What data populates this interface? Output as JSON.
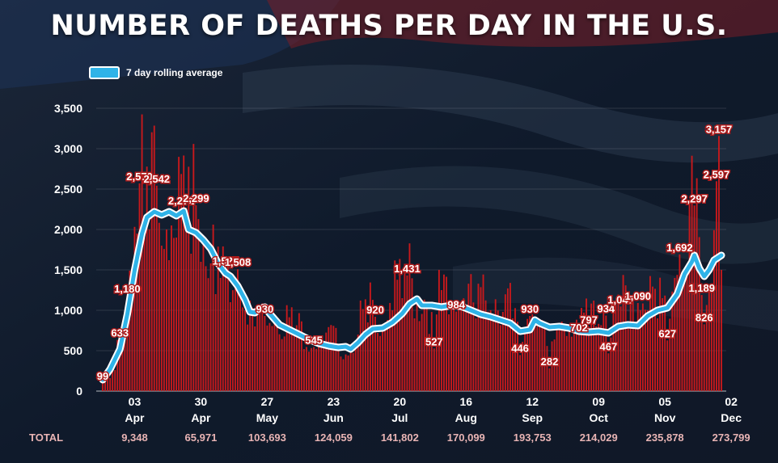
{
  "title": "NUMBER OF DEATHS PER DAY IN THE U.S.",
  "legend_label": "7 day rolling average",
  "colors": {
    "bars": "#c8191c",
    "line": "#2fb3e8",
    "line_border": "#ffffff",
    "label_outline": "#b01c1c",
    "background": "#121d2e"
  },
  "chart_data": {
    "type": "bar",
    "title": "NUMBER OF DEATHS PER DAY IN THE U.S.",
    "ylim": [
      0,
      3500
    ],
    "yticks": [
      0,
      500,
      1000,
      1500,
      2000,
      2500,
      3000,
      3500
    ],
    "ytick_labels": [
      "0",
      "500",
      "1,000",
      "1,500",
      "2,000",
      "2,500",
      "3,000",
      "3,500"
    ],
    "x_start": "Mar 21",
    "x_end": "Dec 2",
    "xticks": [
      {
        "day": "03",
        "month": "Apr",
        "index": 13
      },
      {
        "day": "30",
        "month": "Apr",
        "index": 40
      },
      {
        "day": "27",
        "month": "May",
        "index": 67
      },
      {
        "day": "23",
        "month": "Jun",
        "index": 94
      },
      {
        "day": "20",
        "month": "Jul",
        "index": 121
      },
      {
        "day": "16",
        "month": "Aug",
        "index": 148
      },
      {
        "day": "12",
        "month": "Sep",
        "index": 175
      },
      {
        "day": "09",
        "month": "Oct",
        "index": 202
      },
      {
        "day": "05",
        "month": "Nov",
        "index": 229
      },
      {
        "day": "02",
        "month": "Dec",
        "index": 256
      }
    ],
    "totals_label": "TOTAL",
    "totals": [
      "9,348",
      "65,971",
      "103,693",
      "124,059",
      "141,802",
      "170,099",
      "193,753",
      "214,029",
      "235,878",
      "273,799"
    ],
    "daily_anchors": [
      [
        0,
        99
      ],
      [
        3,
        160
      ],
      [
        5,
        260
      ],
      [
        7,
        633
      ],
      [
        9,
        900
      ],
      [
        10,
        1180
      ],
      [
        12,
        1500
      ],
      [
        14,
        1950
      ],
      [
        15,
        2570
      ],
      [
        17,
        1900
      ],
      [
        19,
        2000
      ],
      [
        22,
        2542
      ],
      [
        24,
        1800
      ],
      [
        26,
        2000
      ],
      [
        28,
        2050
      ],
      [
        30,
        1900
      ],
      [
        34,
        2270
      ],
      [
        36,
        1700
      ],
      [
        38,
        2299
      ],
      [
        40,
        1600
      ],
      [
        44,
        1580
      ],
      [
        46,
        1200
      ],
      [
        48,
        1400
      ],
      [
        50,
        1527
      ],
      [
        52,
        1100
      ],
      [
        55,
        1508
      ],
      [
        58,
        1000
      ],
      [
        62,
        800
      ],
      [
        66,
        930
      ],
      [
        70,
        850
      ],
      [
        78,
        700
      ],
      [
        86,
        545
      ],
      [
        90,
        600
      ],
      [
        96,
        520
      ],
      [
        100,
        440
      ],
      [
        104,
        700
      ],
      [
        108,
        850
      ],
      [
        111,
        920
      ],
      [
        114,
        800
      ],
      [
        118,
        1000
      ],
      [
        122,
        1150
      ],
      [
        124,
        1431
      ],
      [
        127,
        900
      ],
      [
        132,
        1050
      ],
      [
        135,
        527
      ],
      [
        138,
        1250
      ],
      [
        141,
        950
      ],
      [
        144,
        984
      ],
      [
        148,
        1000
      ],
      [
        152,
        900
      ],
      [
        158,
        1000
      ],
      [
        163,
        980
      ],
      [
        167,
        900
      ],
      [
        170,
        446
      ],
      [
        174,
        930
      ],
      [
        176,
        900
      ],
      [
        178,
        800
      ],
      [
        182,
        282
      ],
      [
        186,
        800
      ],
      [
        190,
        800
      ],
      [
        194,
        702
      ],
      [
        198,
        797
      ],
      [
        201,
        800
      ],
      [
        205,
        934
      ],
      [
        206,
        467
      ],
      [
        211,
        1047
      ],
      [
        214,
        800
      ],
      [
        218,
        1090
      ],
      [
        222,
        1000
      ],
      [
        226,
        900
      ],
      [
        228,
        1150
      ],
      [
        230,
        627
      ],
      [
        233,
        1400
      ],
      [
        235,
        1692
      ],
      [
        238,
        1500
      ],
      [
        241,
        2297
      ],
      [
        244,
        1189
      ],
      [
        245,
        826
      ],
      [
        248,
        1300
      ],
      [
        250,
        2597
      ],
      [
        251,
        3157
      ],
      [
        252,
        1500
      ]
    ],
    "series": [
      {
        "name": "7 day rolling average",
        "type": "line",
        "points": [
          [
            0,
            140
          ],
          [
            3,
            270
          ],
          [
            7,
            520
          ],
          [
            10,
            950
          ],
          [
            13,
            1500
          ],
          [
            16,
            1950
          ],
          [
            18,
            2150
          ],
          [
            21,
            2220
          ],
          [
            24,
            2180
          ],
          [
            27,
            2220
          ],
          [
            30,
            2170
          ],
          [
            33,
            2230
          ],
          [
            35,
            2000
          ],
          [
            38,
            1960
          ],
          [
            41,
            1870
          ],
          [
            44,
            1760
          ],
          [
            47,
            1580
          ],
          [
            50,
            1460
          ],
          [
            52,
            1420
          ],
          [
            55,
            1300
          ],
          [
            58,
            1130
          ],
          [
            60,
            980
          ],
          [
            62,
            970
          ],
          [
            64,
            1020
          ],
          [
            66,
            1040
          ],
          [
            68,
            960
          ],
          [
            72,
            820
          ],
          [
            76,
            760
          ],
          [
            80,
            700
          ],
          [
            84,
            640
          ],
          [
            88,
            590
          ],
          [
            92,
            560
          ],
          [
            96,
            540
          ],
          [
            99,
            550
          ],
          [
            101,
            520
          ],
          [
            104,
            600
          ],
          [
            107,
            700
          ],
          [
            110,
            770
          ],
          [
            114,
            780
          ],
          [
            118,
            850
          ],
          [
            122,
            960
          ],
          [
            125,
            1080
          ],
          [
            128,
            1140
          ],
          [
            130,
            1060
          ],
          [
            134,
            1060
          ],
          [
            138,
            1040
          ],
          [
            142,
            1060
          ],
          [
            146,
            1050
          ],
          [
            150,
            1000
          ],
          [
            154,
            950
          ],
          [
            158,
            920
          ],
          [
            162,
            880
          ],
          [
            166,
            840
          ],
          [
            170,
            740
          ],
          [
            174,
            760
          ],
          [
            176,
            880
          ],
          [
            178,
            840
          ],
          [
            182,
            790
          ],
          [
            186,
            800
          ],
          [
            190,
            780
          ],
          [
            194,
            740
          ],
          [
            198,
            730
          ],
          [
            202,
            740
          ],
          [
            206,
            720
          ],
          [
            210,
            800
          ],
          [
            214,
            820
          ],
          [
            218,
            810
          ],
          [
            222,
            930
          ],
          [
            226,
            1000
          ],
          [
            230,
            1030
          ],
          [
            234,
            1200
          ],
          [
            237,
            1450
          ],
          [
            240,
            1600
          ],
          [
            241,
            1680
          ],
          [
            243,
            1520
          ],
          [
            245,
            1420
          ],
          [
            247,
            1500
          ],
          [
            249,
            1620
          ],
          [
            252,
            1680
          ]
        ]
      }
    ],
    "data_labels": [
      {
        "text": "99",
        "x": 0,
        "y": 99
      },
      {
        "text": "633",
        "x": 7,
        "y": 633
      },
      {
        "text": "1,180",
        "x": 10,
        "y": 1180
      },
      {
        "text": "2,570",
        "x": 15,
        "y": 2570
      },
      {
        "text": "2,542",
        "x": 22,
        "y": 2542
      },
      {
        "text": "2,271",
        "x": 32,
        "y": 2271
      },
      {
        "text": "2,299",
        "x": 38,
        "y": 2299
      },
      {
        "text": "1,527",
        "x": 50,
        "y": 1527
      },
      {
        "text": "1,508",
        "x": 55,
        "y": 1508
      },
      {
        "text": "930",
        "x": 66,
        "y": 930
      },
      {
        "text": "545",
        "x": 86,
        "y": 545
      },
      {
        "text": "920",
        "x": 111,
        "y": 920
      },
      {
        "text": "1,431",
        "x": 124,
        "y": 1431
      },
      {
        "text": "527",
        "x": 135,
        "y": 527
      },
      {
        "text": "984",
        "x": 144,
        "y": 984
      },
      {
        "text": "446",
        "x": 170,
        "y": 446
      },
      {
        "text": "930",
        "x": 174,
        "y": 930
      },
      {
        "text": "282",
        "x": 182,
        "y": 282
      },
      {
        "text": "702",
        "x": 194,
        "y": 702
      },
      {
        "text": "797",
        "x": 198,
        "y": 797
      },
      {
        "text": "934",
        "x": 205,
        "y": 934
      },
      {
        "text": "467",
        "x": 206,
        "y": 467
      },
      {
        "text": "1,047",
        "x": 211,
        "y": 1047
      },
      {
        "text": "1,090",
        "x": 218,
        "y": 1090
      },
      {
        "text": "627",
        "x": 230,
        "y": 627
      },
      {
        "text": "1,692",
        "x": 235,
        "y": 1692
      },
      {
        "text": "2,297",
        "x": 241,
        "y": 2297
      },
      {
        "text": "1,189",
        "x": 244,
        "y": 1189
      },
      {
        "text": "826",
        "x": 245,
        "y": 826
      },
      {
        "text": "2,597",
        "x": 250,
        "y": 2597
      },
      {
        "text": "3,157",
        "x": 251,
        "y": 3157
      }
    ]
  }
}
